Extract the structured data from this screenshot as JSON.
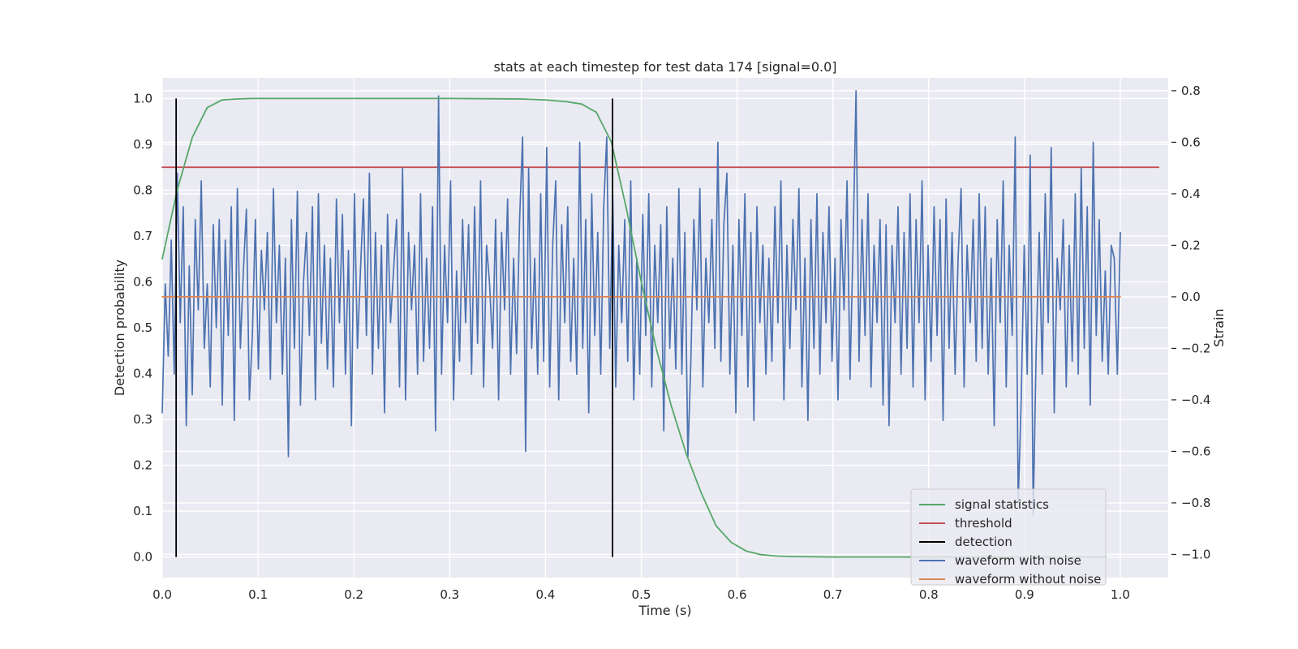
{
  "chart_data": {
    "type": "line",
    "title": "stats at each timestep for test data 174 [signal=0.0]",
    "xlabel": "Time (s)",
    "ylabel_left": "Detection probability",
    "ylabel_right": "Strain",
    "xlim": [
      0.0,
      1.05
    ],
    "ylim_left": [
      -0.045,
      1.045
    ],
    "ylim_right": [
      -1.09,
      0.85
    ],
    "x_ticks": [
      "0.0",
      "0.1",
      "0.2",
      "0.3",
      "0.4",
      "0.5",
      "0.6",
      "0.7",
      "0.8",
      "0.9",
      "1.0"
    ],
    "y_ticks_left": [
      "0.0",
      "0.1",
      "0.2",
      "0.3",
      "0.4",
      "0.5",
      "0.6",
      "0.7",
      "0.8",
      "0.9",
      "1.0"
    ],
    "y_ticks_right": [
      "−1.0",
      "−0.8",
      "−0.6",
      "−0.4",
      "−0.2",
      "0.0",
      "0.2",
      "0.4",
      "0.6",
      "0.8"
    ],
    "y_tick_values_right": [
      -1.0,
      -0.8,
      -0.6,
      -0.4,
      -0.2,
      0.0,
      0.2,
      0.4,
      0.6,
      0.8
    ],
    "grid": true,
    "legend_position": "lower-right",
    "series": [
      {
        "name": "signal statistics",
        "color": "#55a868",
        "axis": "left",
        "x": [
          0.0,
          0.0156,
          0.0313,
          0.0469,
          0.0625,
          0.0781,
          0.0938,
          0.125,
          0.2,
          0.3,
          0.375,
          0.4,
          0.4219,
          0.4375,
          0.4531,
          0.4688,
          0.4844,
          0.5,
          0.5156,
          0.5313,
          0.5469,
          0.5625,
          0.5781,
          0.5938,
          0.6094,
          0.625,
          0.6406,
          0.6563,
          0.7,
          0.8,
          0.9,
          0.985
        ],
        "y": [
          0.65,
          0.8,
          0.915,
          0.98,
          0.997,
          0.999,
          1.0,
          1.0,
          1.0,
          1.0,
          0.999,
          0.997,
          0.993,
          0.988,
          0.97,
          0.905,
          0.76,
          0.6,
          0.455,
          0.33,
          0.225,
          0.14,
          0.068,
          0.032,
          0.013,
          0.005,
          0.002,
          0.001,
          0.0,
          0.0,
          0.0,
          0.0
        ]
      },
      {
        "name": "threshold",
        "color": "#c44e52",
        "axis": "left",
        "x": [
          0.0,
          1.04
        ],
        "y": [
          0.85,
          0.85
        ]
      },
      {
        "name": "detection",
        "color": "#000000",
        "axis": "left",
        "x": [
          0.0145,
          0.47
        ],
        "y_range": [
          0.0,
          1.0
        ]
      },
      {
        "name": "waveform with noise",
        "color": "#4c72b0",
        "axis": "right",
        "x_range": [
          0.0,
          1.0
        ],
        "y": [
          -0.45,
          0.05,
          -0.23,
          0.22,
          -0.3,
          0.48,
          -0.1,
          0.35,
          -0.5,
          0.12,
          -0.38,
          0.3,
          -0.05,
          0.45,
          -0.2,
          0.05,
          -0.35,
          0.28,
          -0.12,
          0.3,
          -0.42,
          0.22,
          -0.15,
          0.35,
          -0.48,
          0.42,
          -0.2,
          0.1,
          0.34,
          -0.4,
          -0.15,
          0.3,
          -0.28,
          0.18,
          -0.05,
          0.25,
          -0.32,
          0.42,
          -0.1,
          0.2,
          -0.3,
          0.15,
          -0.62,
          0.3,
          -0.2,
          0.41,
          -0.42,
          0.05,
          0.25,
          -0.15,
          0.35,
          -0.4,
          0.4,
          -0.18,
          0.2,
          -0.28,
          0.15,
          -0.35,
          0.38,
          -0.1,
          0.32,
          -0.3,
          0.18,
          -0.5,
          0.4,
          -0.2,
          0.1,
          0.38,
          -0.15,
          0.48,
          -0.3,
          0.25,
          -0.2,
          0.2,
          -0.45,
          0.32,
          -0.1,
          0.1,
          0.3,
          -0.35,
          0.5,
          -0.4,
          0.25,
          -0.05,
          0.2,
          -0.3,
          0.4,
          -0.25,
          0.15,
          -0.2,
          0.35,
          -0.52,
          0.78,
          -0.3,
          0.2,
          -0.1,
          0.45,
          -0.4,
          0.1,
          -0.25,
          0.3,
          -0.1,
          0.28,
          -0.3,
          0.35,
          -0.18,
          0.45,
          -0.35,
          0.2,
          0.05,
          -0.2,
          0.3,
          -0.4,
          0.25,
          -0.05,
          0.38,
          -0.3,
          0.15,
          -0.22,
          0.3,
          0.62,
          -0.6,
          0.5,
          -0.2,
          0.15,
          -0.3,
          0.4,
          -0.25,
          0.58,
          -0.35,
          0.2,
          0.45,
          -0.4,
          0.28,
          -0.1,
          0.35,
          -0.25,
          0.15,
          -0.3,
          0.6,
          -0.2,
          0.3,
          -0.45,
          0.4,
          -0.15,
          0.25,
          -0.3,
          0.35,
          0.62,
          -0.2,
          0.4,
          -0.35,
          0.2,
          -0.1,
          0.3,
          -0.25,
          0.45,
          -0.4,
          0.15,
          -0.3,
          0.32,
          -0.15,
          0.4,
          -0.35,
          0.2,
          -0.1,
          0.28,
          -0.52,
          0.35,
          -0.2,
          0.15,
          -0.28,
          0.42,
          -0.3,
          0.25,
          -0.62,
          -0.25,
          0.3,
          -0.05,
          0.42,
          -0.35,
          0.15,
          -0.1,
          0.3,
          -0.2,
          0.6,
          -0.25,
          0.28,
          0.48,
          -0.3,
          0.2,
          -0.45,
          0.3,
          -0.15,
          0.4,
          -0.35,
          0.25,
          -0.48,
          0.35,
          -0.1,
          0.2,
          -0.3,
          0.15,
          -0.25,
          0.35,
          -0.1,
          0.45,
          -0.4,
          0.2,
          -0.2,
          0.3,
          -0.05,
          0.42,
          -0.35,
          0.15,
          -0.48,
          0.3,
          -0.2,
          0.4,
          -0.3,
          0.25,
          -0.1,
          0.35,
          -0.25,
          0.15,
          -0.4,
          0.3,
          -0.05,
          0.45,
          -0.32,
          0.2,
          0.8,
          -0.25,
          0.3,
          -0.15,
          0.4,
          -0.35,
          0.2,
          -0.1,
          0.3,
          -0.42,
          0.28,
          -0.5,
          0.2,
          -0.1,
          0.35,
          -0.3,
          0.25,
          -0.2,
          0.4,
          -0.35,
          0.3,
          -0.1,
          0.45,
          -0.4,
          0.2,
          -0.25,
          0.35,
          -0.15,
          0.3,
          -0.48,
          0.38,
          -0.2,
          0.25,
          -0.3,
          0.15,
          0.42,
          -0.35,
          0.2,
          -0.1,
          0.3,
          -0.25,
          0.4,
          -0.2,
          0.35,
          -0.3,
          0.15,
          -0.5,
          0.3,
          -0.1,
          0.45,
          -0.35,
          0.2,
          -0.15,
          0.62,
          -0.8,
          -0.4,
          0.2,
          -0.3,
          0.55,
          -0.85,
          -0.2,
          0.25,
          -0.3,
          0.4,
          -0.1,
          0.58,
          -0.45,
          0.15,
          -0.05,
          0.3,
          -0.35,
          0.2,
          -0.25,
          0.4,
          -0.3,
          0.5,
          -0.2,
          0.35,
          -0.42,
          0.6,
          -0.15,
          0.3,
          -0.25,
          0.1,
          -0.3,
          0.2,
          0.15,
          -0.3,
          0.25
        ]
      },
      {
        "name": "waveform without noise",
        "color": "#dd8452",
        "axis": "right",
        "x": [
          0.0,
          1.0
        ],
        "y": [
          0.0,
          0.0
        ]
      }
    ]
  },
  "legend": [
    {
      "label": "signal statistics",
      "color": "#55a868"
    },
    {
      "label": "threshold",
      "color": "#c44e52"
    },
    {
      "label": "detection",
      "color": "#000000"
    },
    {
      "label": "waveform with noise",
      "color": "#4c72b0"
    },
    {
      "label": "waveform without noise",
      "color": "#dd8452"
    }
  ]
}
